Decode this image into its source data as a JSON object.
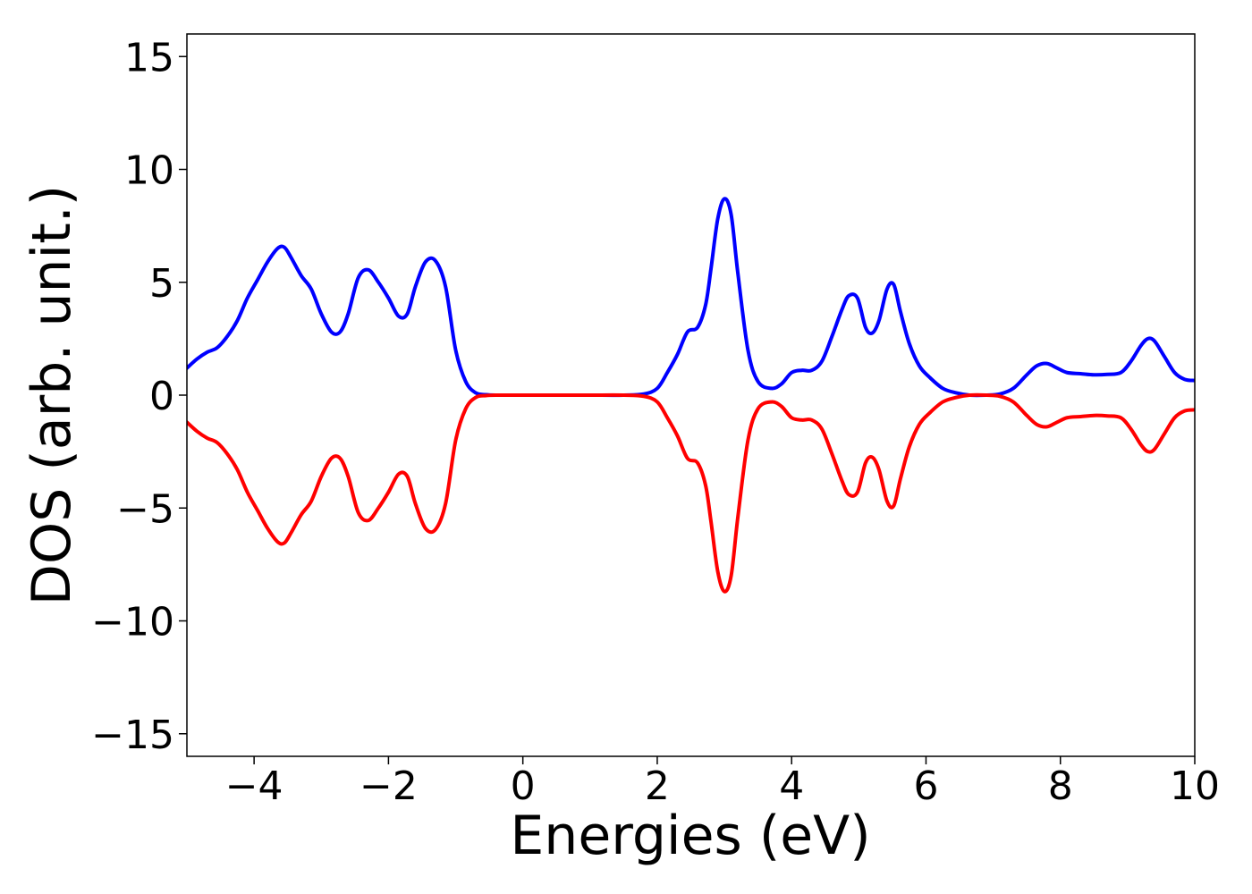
{
  "chart_data": {
    "type": "line",
    "title": "",
    "xlabel": "Energies (eV)",
    "ylabel": "DOS (arb. unit.)",
    "xlim": [
      -5,
      10
    ],
    "ylim": [
      -16,
      16
    ],
    "xticks": [
      -4,
      -2,
      0,
      2,
      4,
      6,
      8,
      10
    ],
    "xtick_labels": [
      "−4",
      "−2",
      "0",
      "2",
      "4",
      "6",
      "8",
      "10"
    ],
    "yticks": [
      -15,
      -10,
      -5,
      0,
      5,
      10,
      15
    ],
    "ytick_labels": [
      "−15",
      "−10",
      "−5",
      "0",
      "5",
      "10",
      "15"
    ],
    "grid": false,
    "legend": "none",
    "series": [
      {
        "color": "#0000ff",
        "x": [
          -5.0,
          -4.85,
          -4.7,
          -4.55,
          -4.4,
          -4.25,
          -4.1,
          -3.95,
          -3.8,
          -3.65,
          -3.55,
          -3.45,
          -3.3,
          -3.15,
          -3.0,
          -2.85,
          -2.72,
          -2.6,
          -2.45,
          -2.3,
          -2.15,
          -2.0,
          -1.85,
          -1.72,
          -1.6,
          -1.45,
          -1.3,
          -1.15,
          -1.0,
          -0.85,
          -0.7,
          -0.55,
          -0.4,
          0.0,
          0.5,
          1.0,
          1.5,
          1.8,
          2.0,
          2.15,
          2.3,
          2.45,
          2.6,
          2.72,
          2.8,
          2.9,
          3.0,
          3.1,
          3.2,
          3.35,
          3.5,
          3.7,
          3.85,
          4.0,
          4.15,
          4.3,
          4.45,
          4.6,
          4.75,
          4.85,
          4.98,
          5.1,
          5.2,
          5.3,
          5.42,
          5.52,
          5.62,
          5.75,
          5.9,
          6.05,
          6.25,
          6.45,
          6.65,
          6.9,
          7.1,
          7.3,
          7.5,
          7.65,
          7.8,
          7.95,
          8.1,
          8.3,
          8.5,
          8.7,
          8.9,
          9.05,
          9.2,
          9.3,
          9.4,
          9.55,
          9.7,
          9.85,
          10.0
        ],
        "y": [
          1.2,
          1.6,
          1.9,
          2.1,
          2.6,
          3.3,
          4.3,
          5.1,
          5.9,
          6.5,
          6.55,
          6.1,
          5.3,
          4.7,
          3.6,
          2.8,
          2.8,
          3.6,
          5.2,
          5.55,
          5.0,
          4.3,
          3.5,
          3.6,
          4.8,
          5.9,
          5.95,
          4.8,
          2.0,
          0.6,
          0.1,
          0.02,
          0.0,
          0.0,
          0.0,
          0.0,
          0.0,
          0.05,
          0.3,
          1.0,
          1.8,
          2.8,
          3.0,
          4.0,
          5.6,
          7.8,
          8.7,
          8.0,
          5.4,
          2.0,
          0.6,
          0.3,
          0.5,
          1.0,
          1.1,
          1.1,
          1.5,
          2.6,
          3.8,
          4.4,
          4.3,
          3.0,
          2.75,
          3.3,
          4.7,
          4.9,
          3.7,
          2.3,
          1.3,
          0.8,
          0.3,
          0.1,
          0.0,
          0.0,
          0.05,
          0.3,
          0.9,
          1.3,
          1.4,
          1.2,
          1.0,
          0.95,
          0.9,
          0.92,
          1.0,
          1.5,
          2.2,
          2.5,
          2.4,
          1.7,
          1.0,
          0.7,
          0.65
        ]
      },
      {
        "color": "#ff0000",
        "x": [
          -5.0,
          -4.85,
          -4.7,
          -4.55,
          -4.4,
          -4.25,
          -4.1,
          -3.95,
          -3.8,
          -3.65,
          -3.55,
          -3.45,
          -3.3,
          -3.15,
          -3.0,
          -2.85,
          -2.72,
          -2.6,
          -2.45,
          -2.3,
          -2.15,
          -2.0,
          -1.85,
          -1.72,
          -1.6,
          -1.45,
          -1.3,
          -1.15,
          -1.0,
          -0.85,
          -0.7,
          -0.55,
          -0.4,
          0.0,
          0.5,
          1.0,
          1.5,
          1.8,
          2.0,
          2.15,
          2.3,
          2.45,
          2.6,
          2.72,
          2.8,
          2.9,
          3.0,
          3.1,
          3.2,
          3.35,
          3.5,
          3.7,
          3.85,
          4.0,
          4.15,
          4.3,
          4.45,
          4.6,
          4.75,
          4.85,
          4.98,
          5.1,
          5.2,
          5.3,
          5.42,
          5.52,
          5.62,
          5.75,
          5.9,
          6.05,
          6.25,
          6.45,
          6.65,
          6.9,
          7.1,
          7.3,
          7.5,
          7.65,
          7.8,
          7.95,
          8.1,
          8.3,
          8.5,
          8.7,
          8.9,
          9.05,
          9.2,
          9.3,
          9.4,
          9.55,
          9.7,
          9.85,
          10.0
        ],
        "y": [
          -1.2,
          -1.6,
          -1.9,
          -2.1,
          -2.6,
          -3.3,
          -4.3,
          -5.1,
          -5.9,
          -6.5,
          -6.55,
          -6.1,
          -5.3,
          -4.7,
          -3.6,
          -2.8,
          -2.8,
          -3.6,
          -5.2,
          -5.55,
          -5.0,
          -4.3,
          -3.5,
          -3.6,
          -4.8,
          -5.9,
          -5.95,
          -4.8,
          -2.0,
          -0.6,
          -0.1,
          -0.02,
          0.0,
          0.0,
          0.0,
          0.0,
          0.0,
          -0.05,
          -0.3,
          -1.0,
          -1.8,
          -2.8,
          -3.0,
          -4.0,
          -5.6,
          -7.8,
          -8.7,
          -8.0,
          -5.4,
          -2.0,
          -0.6,
          -0.3,
          -0.5,
          -1.0,
          -1.1,
          -1.1,
          -1.5,
          -2.6,
          -3.8,
          -4.4,
          -4.3,
          -3.0,
          -2.75,
          -3.3,
          -4.7,
          -4.9,
          -3.7,
          -2.3,
          -1.3,
          -0.8,
          -0.3,
          -0.1,
          0.0,
          0.0,
          -0.05,
          -0.3,
          -0.9,
          -1.3,
          -1.4,
          -1.2,
          -1.0,
          -0.95,
          -0.9,
          -0.92,
          -1.0,
          -1.5,
          -2.2,
          -2.5,
          -2.4,
          -1.7,
          -1.0,
          -0.7,
          -0.65
        ]
      }
    ]
  }
}
